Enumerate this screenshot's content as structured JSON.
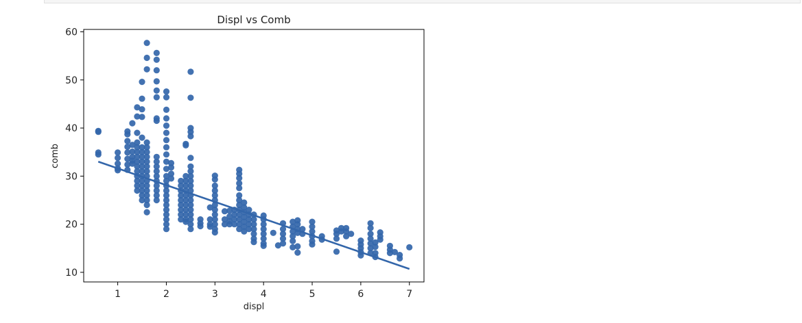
{
  "chart_data": {
    "type": "scatter",
    "title": "Displ vs Comb",
    "xlabel": "displ",
    "ylabel": "comb",
    "xlim": [
      0.3,
      7.3
    ],
    "ylim": [
      8,
      60.5
    ],
    "xticks": [
      "1",
      "2",
      "3",
      "4",
      "5",
      "6",
      "7"
    ],
    "yticks": [
      "10",
      "20",
      "30",
      "40",
      "50",
      "60"
    ],
    "grid": false,
    "point_color": "#3366aa",
    "line_color": "#3366aa",
    "regression": {
      "x": [
        0.6,
        7.0
      ],
      "y": [
        33.0,
        10.7
      ]
    },
    "columns": [
      {
        "x": 0.6,
        "y": [
          39.4,
          39.2,
          34.9,
          34.5
        ]
      },
      {
        "x": 1.0,
        "y": [
          34.9,
          33.8,
          32.6,
          31.6,
          31.2
        ]
      },
      {
        "x": 1.2,
        "y": [
          39.3,
          38.7,
          37.3,
          36.1,
          34.9,
          33.6,
          32.4,
          31.3
        ]
      },
      {
        "x": 1.3,
        "y": [
          41.0,
          36.5,
          35.1,
          34.0,
          33.2,
          32.6
        ]
      },
      {
        "x": 1.4,
        "y": [
          44.3,
          42.4,
          39.0,
          37.0,
          36.0,
          35.0,
          34.0,
          33.0,
          32.0,
          31.0,
          30.0,
          29.0,
          28.0,
          27.0
        ]
      },
      {
        "x": 1.5,
        "y": [
          49.6,
          46.1,
          43.9,
          42.3,
          38.0,
          36.0,
          35.0,
          34.0,
          33.0,
          32.0,
          31.0,
          30.0,
          29.0,
          28.0,
          27.0,
          26.0,
          25.0
        ]
      },
      {
        "x": 1.6,
        "y": [
          57.7,
          54.6,
          52.2,
          37.0,
          36.0,
          35.0,
          34.0,
          33.0,
          32.0,
          31.0,
          30.0,
          29.0,
          28.0,
          27.0,
          26.0,
          25.0,
          24.0,
          22.5
        ]
      },
      {
        "x": 1.8,
        "y": [
          55.6,
          54.2,
          52.0,
          49.7,
          47.8,
          46.4,
          42.0,
          41.5,
          34.0,
          33.0,
          32.0,
          31.0,
          30.0,
          29.0,
          28.0,
          27.0,
          26.0,
          25.0
        ]
      },
      {
        "x": 2.0,
        "y": [
          47.6,
          46.4,
          43.8,
          42.0,
          40.5,
          39.0,
          37.5,
          36.0,
          34.5,
          33.0,
          31.5,
          30.0,
          29.0,
          28.0,
          27.0,
          26.0,
          25.0,
          24.0,
          23.0,
          22.0,
          21.0,
          20.0,
          19.0
        ]
      },
      {
        "x": 2.1,
        "y": [
          32.7,
          31.8,
          30.5,
          29.5
        ]
      },
      {
        "x": 2.3,
        "y": [
          29.0,
          28.0,
          27.0,
          26.0,
          25.0,
          24.0,
          23.0,
          22.0,
          21.0
        ]
      },
      {
        "x": 2.4,
        "y": [
          36.7,
          36.4,
          30.0,
          29.0,
          28.0,
          27.0,
          26.0,
          25.0,
          24.0,
          23.0,
          22.0,
          21.0,
          20.5
        ]
      },
      {
        "x": 2.5,
        "y": [
          51.7,
          46.3,
          40.0,
          39.2,
          38.3,
          33.8,
          32.0,
          31.0,
          30.0,
          29.0,
          28.0,
          27.0,
          26.0,
          25.0,
          24.0,
          23.0,
          22.0,
          21.0,
          20.0,
          19.0
        ]
      },
      {
        "x": 2.7,
        "y": [
          21.0,
          20.2,
          19.6
        ]
      },
      {
        "x": 2.9,
        "y": [
          23.5,
          21.0,
          20.0,
          19.5
        ]
      },
      {
        "x": 3.0,
        "y": [
          30.1,
          29.3,
          28.0,
          27.0,
          26.0,
          25.0,
          24.0,
          23.0,
          22.0,
          21.0,
          20.0,
          19.0,
          18.3
        ]
      },
      {
        "x": 3.2,
        "y": [
          22.7,
          21.0,
          20.0
        ]
      },
      {
        "x": 3.3,
        "y": [
          22.8,
          21.6,
          20.6,
          20.0
        ]
      },
      {
        "x": 3.4,
        "y": [
          23.0,
          22.0,
          21.0,
          20.0
        ]
      },
      {
        "x": 3.5,
        "y": [
          31.3,
          30.5,
          29.6,
          28.5,
          27.5,
          26.0,
          25.0,
          24.0,
          23.0,
          22.0,
          21.0,
          20.0,
          19.0
        ]
      },
      {
        "x": 3.6,
        "y": [
          24.5,
          23.5,
          22.5,
          21.5,
          20.5,
          19.5,
          18.5
        ]
      },
      {
        "x": 3.7,
        "y": [
          23.0,
          22.0,
          21.0,
          20.0,
          19.0
        ]
      },
      {
        "x": 3.8,
        "y": [
          22.0,
          21.0,
          20.0,
          19.0,
          18.0,
          17.0,
          16.3
        ]
      },
      {
        "x": 4.0,
        "y": [
          21.8,
          21.0,
          20.0,
          19.0,
          18.0,
          17.0,
          16.0,
          15.5
        ]
      },
      {
        "x": 4.2,
        "y": [
          18.2
        ]
      },
      {
        "x": 4.3,
        "y": [
          15.6
        ]
      },
      {
        "x": 4.4,
        "y": [
          20.2,
          19.0,
          18.0,
          17.0,
          16.0
        ]
      },
      {
        "x": 4.6,
        "y": [
          20.5,
          19.5,
          18.5,
          17.5,
          16.5,
          15.2
        ]
      },
      {
        "x": 4.7,
        "y": [
          20.8,
          20.0,
          19.0,
          18.2,
          15.4,
          14.1
        ]
      },
      {
        "x": 4.8,
        "y": [
          19.0,
          18.0
        ]
      },
      {
        "x": 5.0,
        "y": [
          20.5,
          19.5,
          18.5,
          17.5,
          16.5,
          15.8
        ]
      },
      {
        "x": 5.2,
        "y": [
          17.5,
          16.8
        ]
      },
      {
        "x": 5.5,
        "y": [
          18.7,
          18.0,
          17.0,
          14.3
        ]
      },
      {
        "x": 5.6,
        "y": [
          19.2,
          18.5
        ]
      },
      {
        "x": 5.7,
        "y": [
          19.2,
          18.5,
          17.5
        ]
      },
      {
        "x": 5.8,
        "y": [
          18.0
        ]
      },
      {
        "x": 6.0,
        "y": [
          16.6,
          15.8,
          15.0,
          14.2,
          13.5
        ]
      },
      {
        "x": 6.2,
        "y": [
          20.2,
          19.2,
          18.0,
          17.0,
          16.0,
          15.0,
          14.0
        ]
      },
      {
        "x": 6.3,
        "y": [
          16.2,
          15.3,
          14.0,
          13.2
        ]
      },
      {
        "x": 6.4,
        "y": [
          18.3,
          17.5,
          16.8
        ]
      },
      {
        "x": 6.6,
        "y": [
          15.5,
          14.7,
          14.0
        ]
      },
      {
        "x": 6.7,
        "y": [
          14.2
        ]
      },
      {
        "x": 6.8,
        "y": [
          13.6,
          12.9
        ]
      },
      {
        "x": 7.0,
        "y": [
          15.2
        ]
      }
    ]
  }
}
